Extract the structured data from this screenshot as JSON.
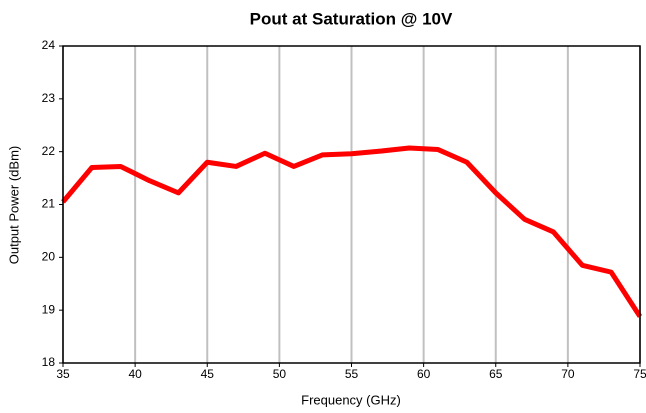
{
  "chart_data": {
    "type": "line",
    "title": "Pout at Saturation @ 10V",
    "xlabel": "Frequency (GHz)",
    "ylabel": "Output Power (dBm)",
    "x": [
      35,
      37,
      39,
      41,
      43,
      45,
      47,
      49,
      51,
      53,
      55,
      57,
      59,
      61,
      63,
      65,
      67,
      69,
      71,
      73,
      75
    ],
    "series": [
      {
        "name": "Pout",
        "color": "#ff0000",
        "values": [
          21.05,
          21.7,
          21.72,
          21.45,
          21.22,
          21.8,
          21.72,
          21.97,
          21.72,
          21.94,
          21.96,
          22.01,
          22.07,
          22.04,
          21.8,
          21.22,
          20.72,
          20.48,
          19.85,
          19.72,
          18.88
        ]
      }
    ],
    "xlim": [
      35,
      75
    ],
    "xticks": [
      35,
      40,
      45,
      50,
      55,
      60,
      65,
      70,
      75
    ],
    "ylim": [
      18,
      24
    ],
    "yticks": [
      18,
      19,
      20,
      21,
      22,
      23,
      24
    ],
    "grid": "x",
    "grid_color": "#c0c0c0"
  }
}
